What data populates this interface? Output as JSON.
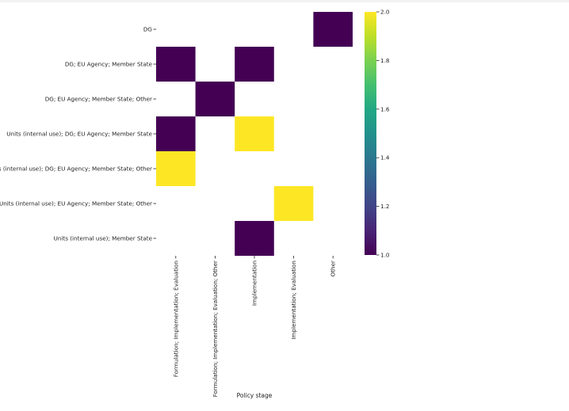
{
  "chart_data": {
    "type": "heatmap",
    "title": "",
    "xlabel": "Policy stage",
    "ylabel": "",
    "x_categories": [
      "Formulation; Implementation; Evaluation",
      "Formulation; Implementation; Evaluation; Other",
      "Implementation",
      "Implementation; Evaluation",
      "Other"
    ],
    "y_categories": [
      "DG",
      "DG; EU Agency; Member State",
      "DG; EU Agency; Member State; Other",
      "Units (internal use); DG; EU Agency; Member State",
      "Units (internal use); DG; EU Agency; Member State; Other",
      "Units (internal use); EU Agency; Member State; Other",
      "Units (internal use); Member State"
    ],
    "values": [
      [
        null,
        null,
        null,
        null,
        1
      ],
      [
        1,
        null,
        1,
        null,
        null
      ],
      [
        null,
        1,
        null,
        null,
        null
      ],
      [
        1,
        null,
        2,
        null,
        null
      ],
      [
        2,
        null,
        null,
        null,
        null
      ],
      [
        null,
        null,
        null,
        2,
        null
      ],
      [
        null,
        null,
        1,
        null,
        null
      ]
    ],
    "colorbar": {
      "colormap": "viridis",
      "range": [
        1.0,
        2.0
      ],
      "ticks": [
        1.0,
        1.2,
        1.4,
        1.6,
        1.8,
        2.0
      ],
      "tick_labels": [
        "1.0",
        "1.2",
        "1.4",
        "1.6",
        "1.8",
        "2.0"
      ]
    },
    "grid": false,
    "colors": {
      "low": "#440154",
      "high": "#fde725"
    }
  }
}
